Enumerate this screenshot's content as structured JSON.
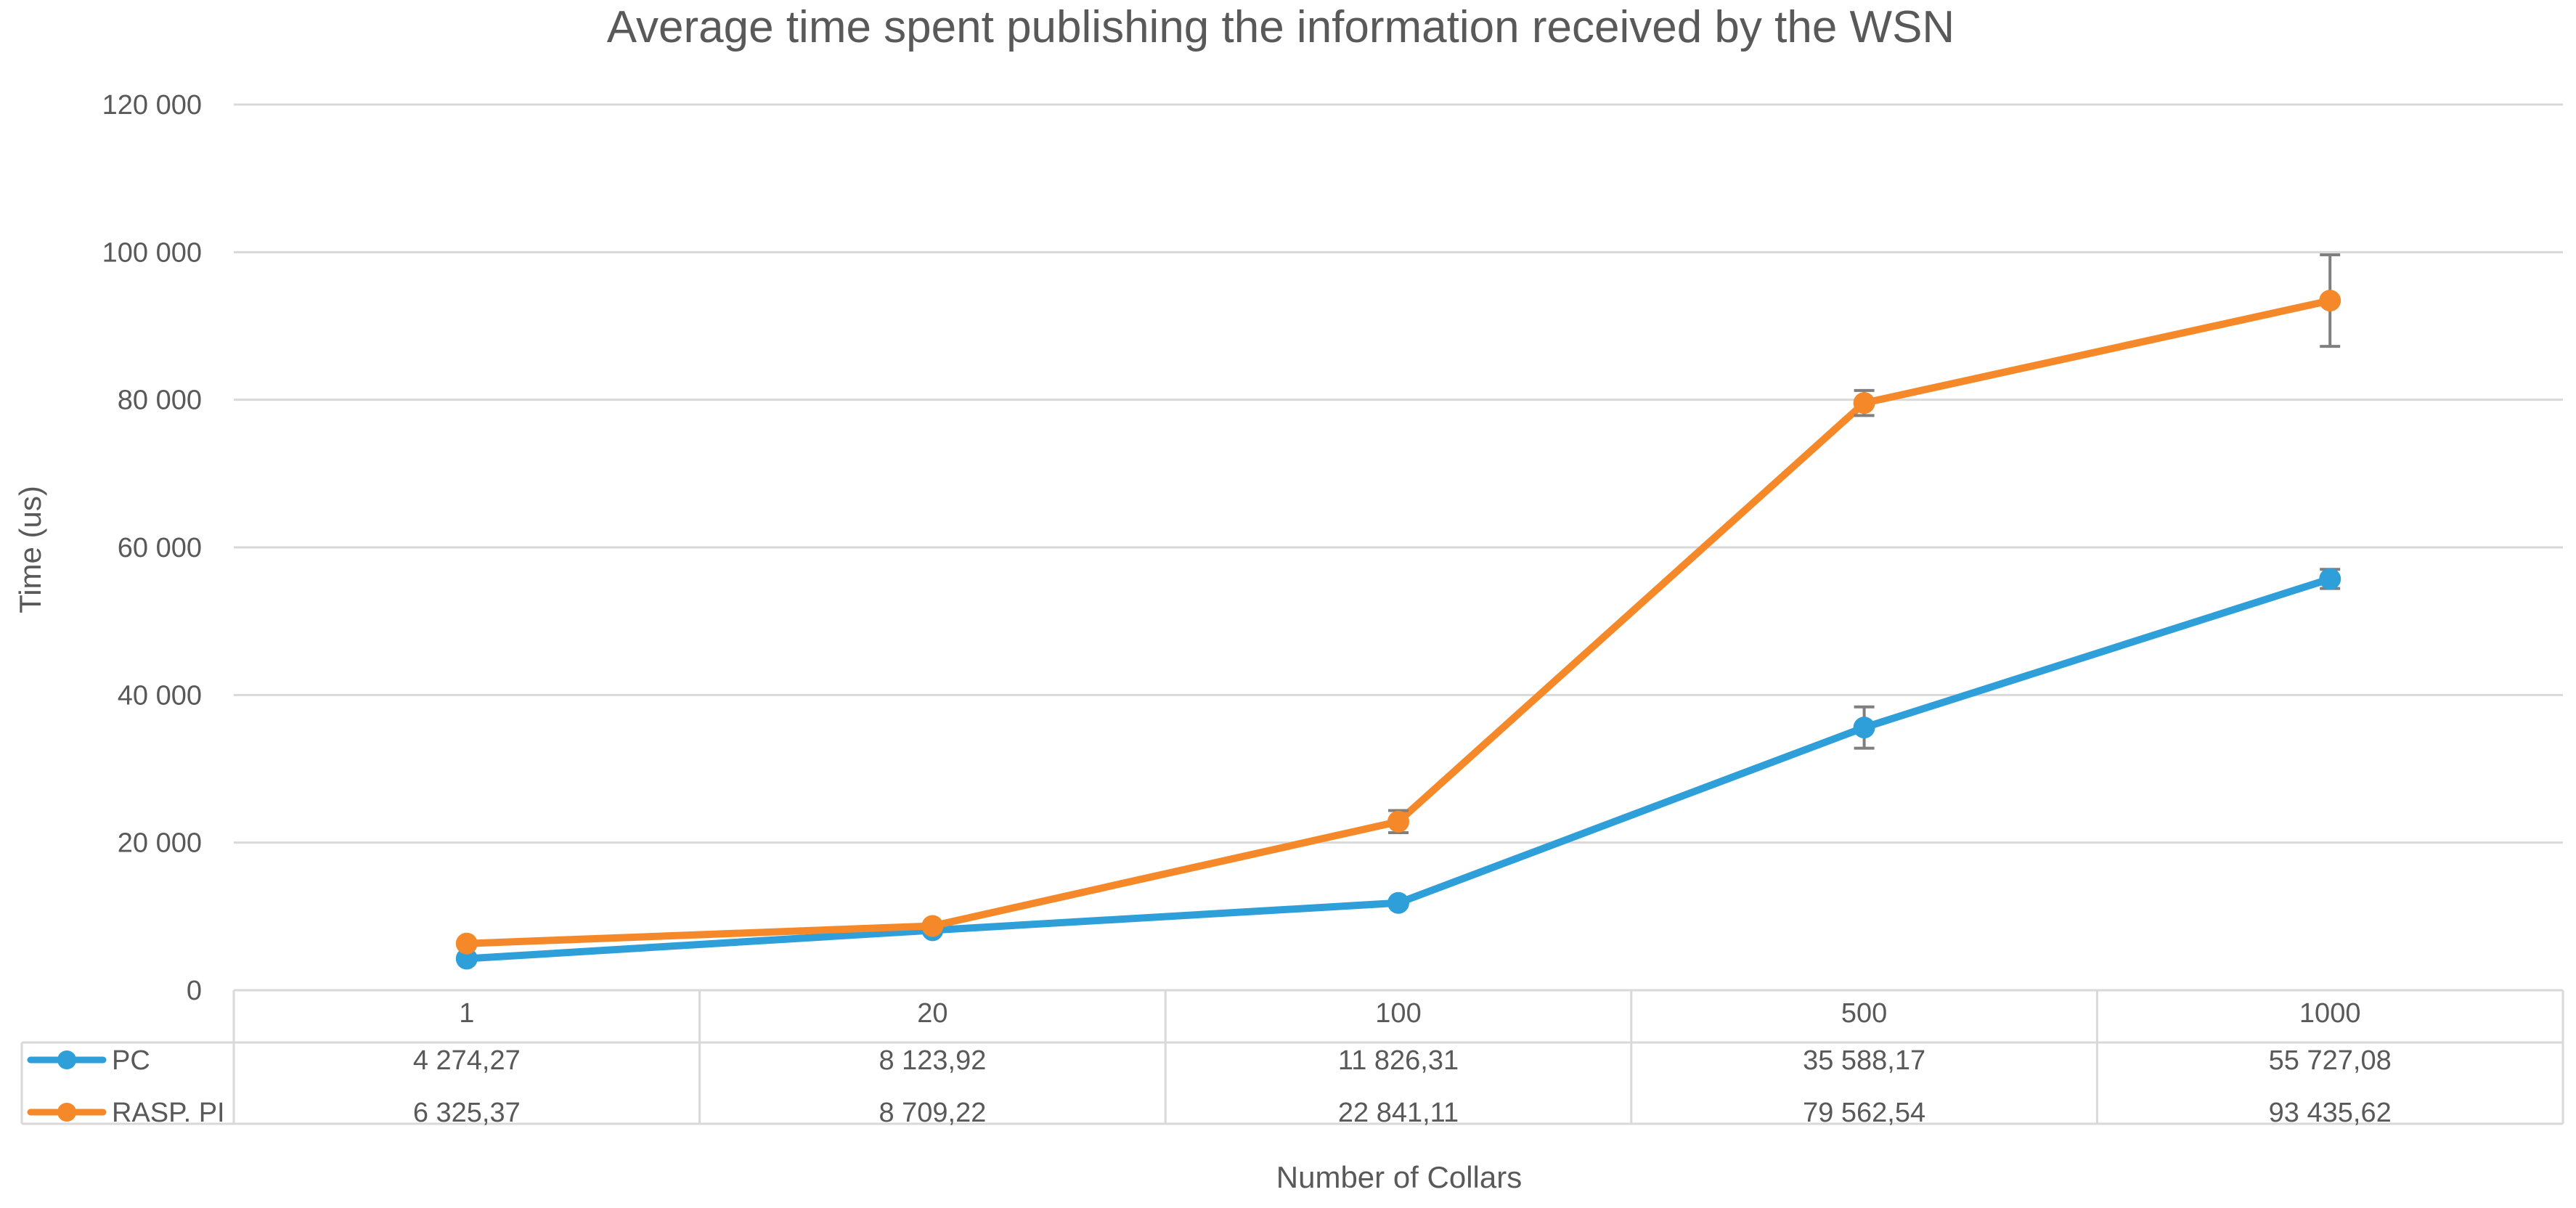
{
  "chart_data": {
    "type": "line",
    "title": "Average time spent publishing the information received by the WSN",
    "xlabel": "Number of Collars",
    "ylabel": "Time (us)",
    "categories": [
      "1",
      "20",
      "100",
      "500",
      "1000"
    ],
    "ylim": [
      0,
      120000
    ],
    "yticks": [
      0,
      20000,
      40000,
      60000,
      80000,
      100000,
      120000
    ],
    "ytick_labels": [
      "0",
      "20 000",
      "40 000",
      "60 000",
      "80 000",
      "100 000",
      "120 000"
    ],
    "grid": true,
    "legend": "data-table",
    "series": [
      {
        "name": "PC",
        "color": "#2e9fd9",
        "values": [
          4274.27,
          8123.92,
          11826.31,
          35588.17,
          55727.08
        ],
        "labels": [
          "4 274,27",
          "8 123,92",
          "11 826,31",
          "35 588,17",
          "55 727,08"
        ],
        "error": [
          null,
          null,
          null,
          2800,
          1300
        ]
      },
      {
        "name": "RASP. PI",
        "color": "#f5892a",
        "values": [
          6325.37,
          8709.22,
          22841.11,
          79562.54,
          93435.62
        ],
        "labels": [
          "6 325,37",
          "8 709,22",
          "22 841,11",
          "79 562,54",
          "93 435,62"
        ],
        "error": [
          null,
          null,
          1500,
          1700,
          6200
        ]
      }
    ]
  }
}
